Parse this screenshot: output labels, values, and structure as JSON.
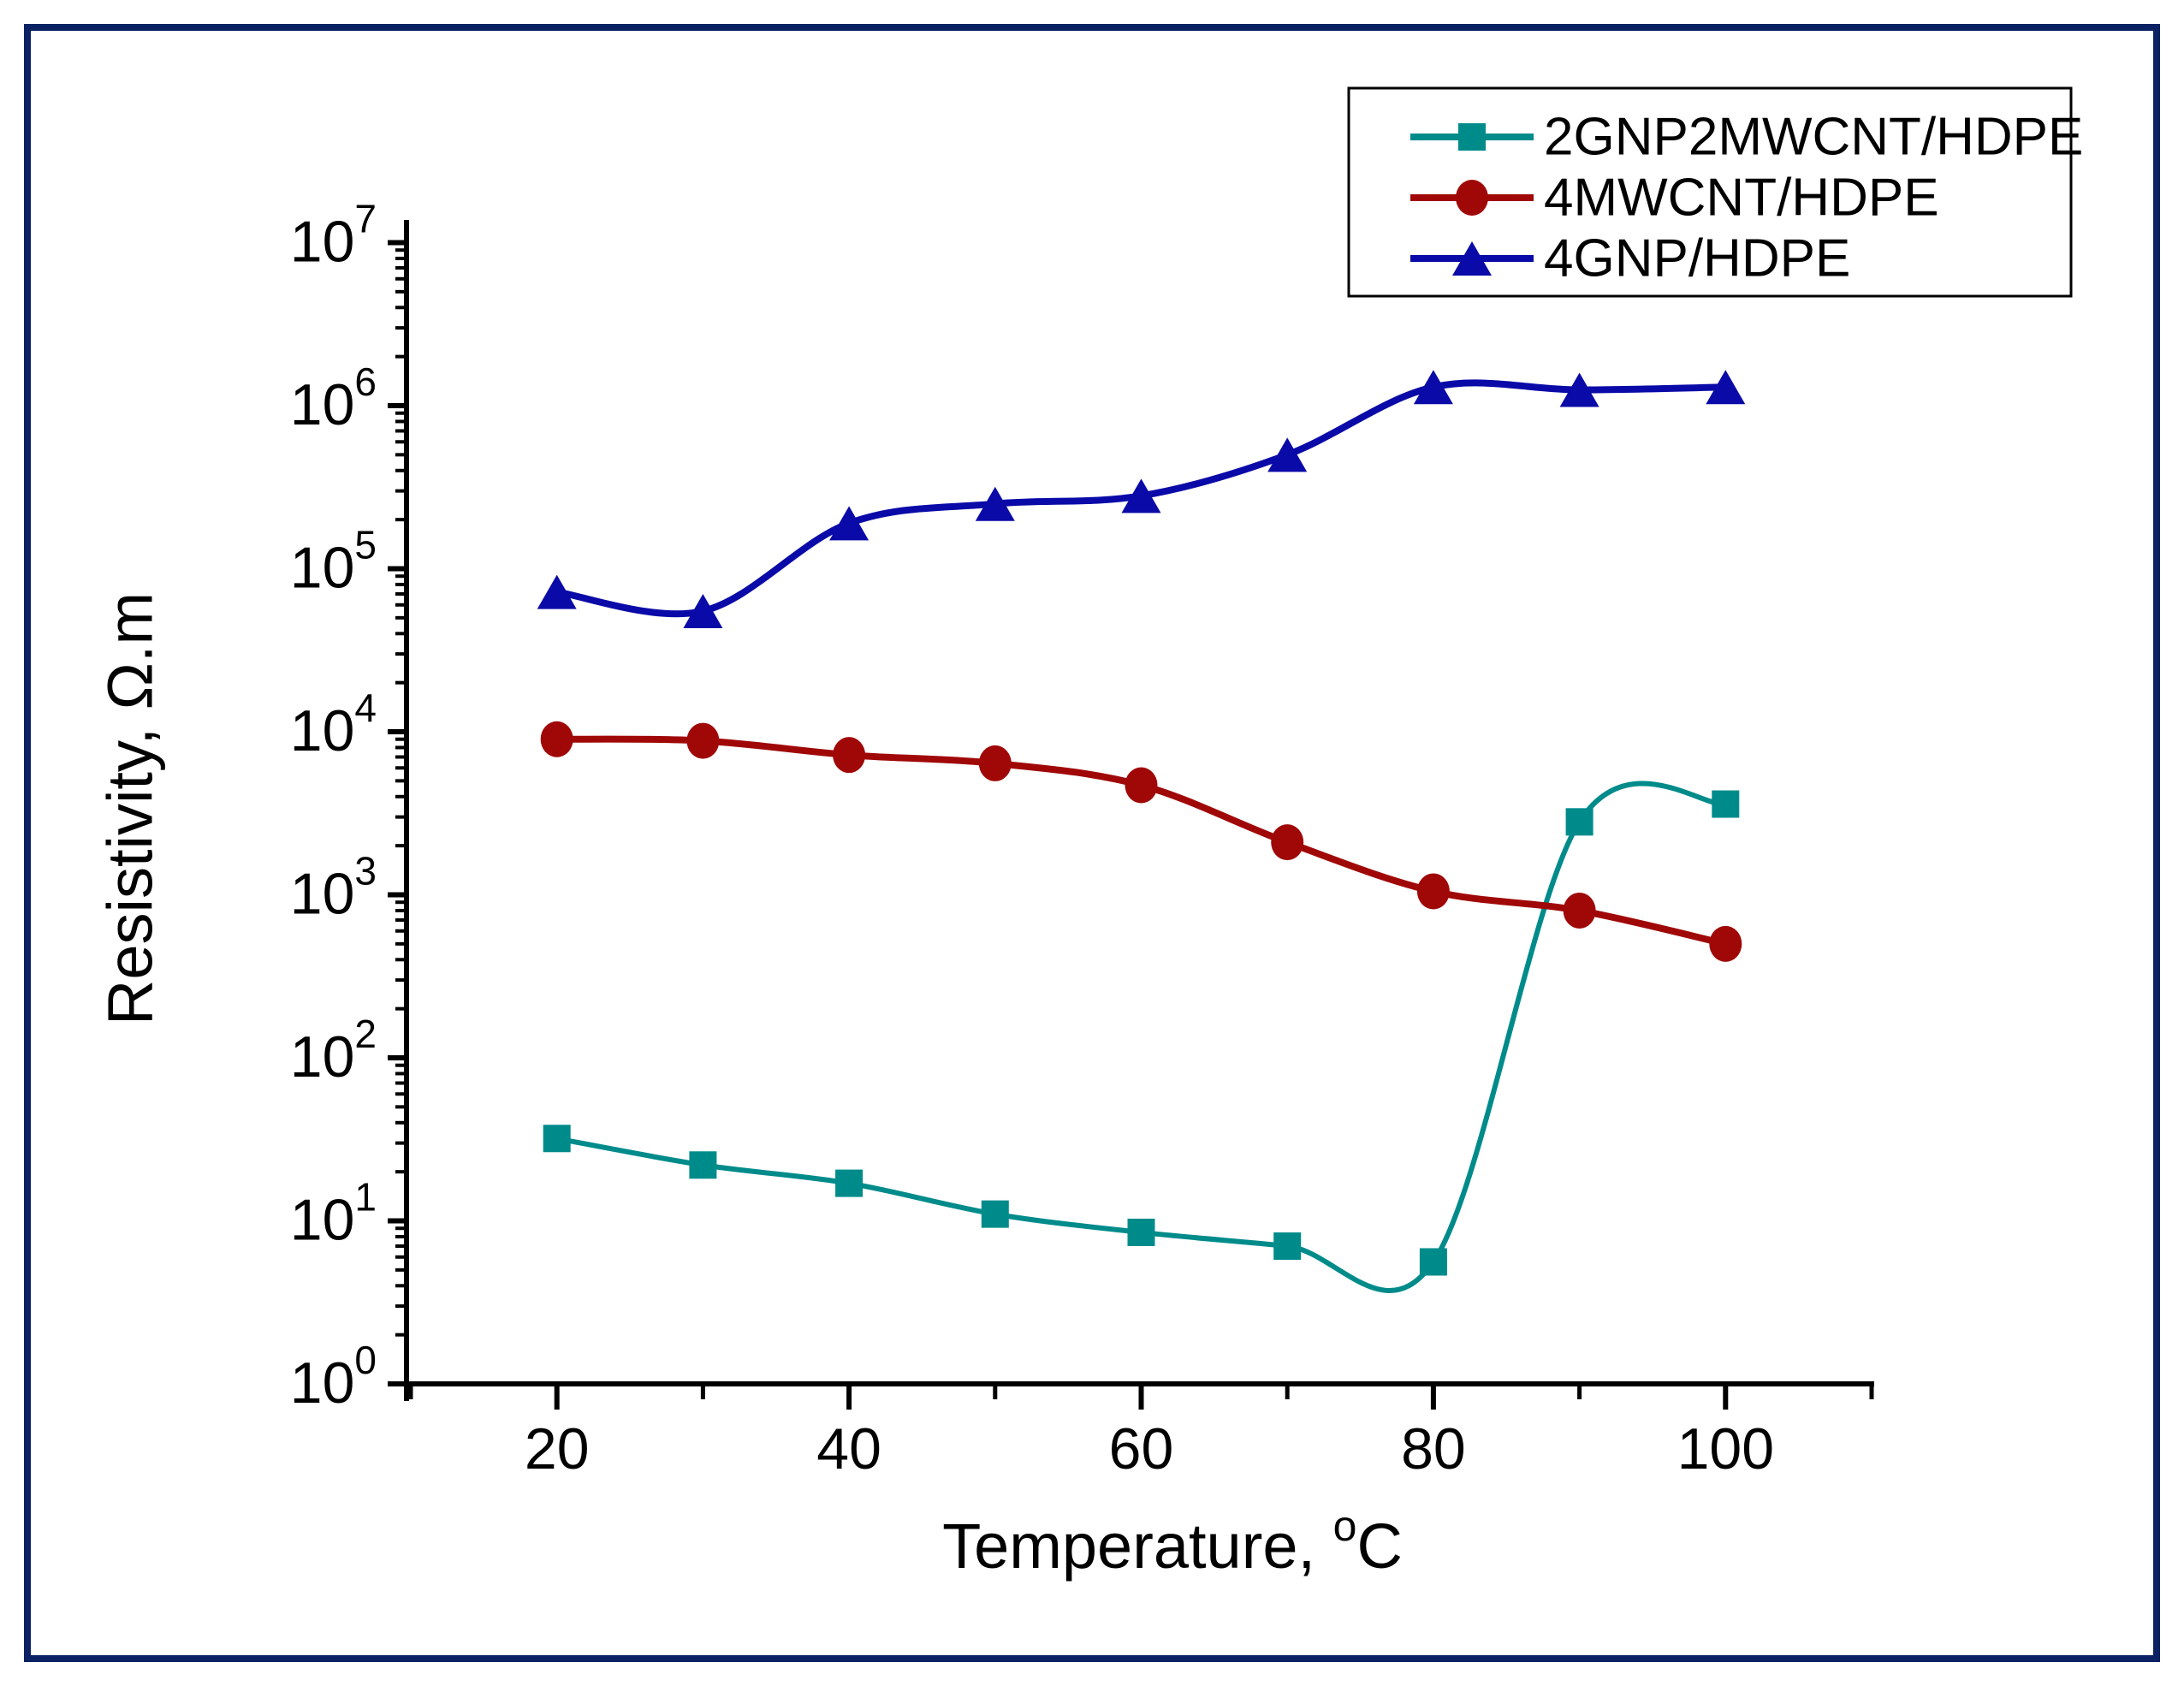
{
  "figure": {
    "border_color": "#0a2163",
    "background": "#ffffff"
  },
  "chart_data": {
    "type": "line",
    "title": "",
    "xlabel": "Temperature, °C",
    "xlabel_parts": {
      "prefix": "Temperature, ",
      "sup": "o",
      "suffix": "C"
    },
    "ylabel": "Resistivity, Ω.m",
    "x": [
      20,
      30,
      40,
      50,
      60,
      70,
      80,
      90,
      100
    ],
    "x_axis": {
      "min": 10,
      "max": 110,
      "major_ticks": [
        20,
        40,
        60,
        80,
        100
      ],
      "tick_labels": [
        "20",
        "40",
        "60",
        "80",
        "100"
      ],
      "minor_ticks": [
        10,
        30,
        50,
        70,
        90,
        110
      ]
    },
    "y_axis": {
      "scale": "log",
      "label_base": "10",
      "exponents": [
        0,
        1,
        2,
        3,
        4,
        5,
        6,
        7
      ],
      "min": 1,
      "max": 10000000
    },
    "grid": false,
    "legend_position": "top-right",
    "series": [
      {
        "name": "2GNP2MWCNT/HDPE",
        "color": "#008b8b",
        "marker": "square",
        "values": [
          32,
          22,
          17,
          11,
          8.5,
          7,
          5.6,
          2800,
          3600
        ]
      },
      {
        "name": "4MWCNT/HDPE",
        "color": "#a00808",
        "marker": "circle",
        "values": [
          9000,
          8800,
          7200,
          6400,
          4700,
          2100,
          1050,
          800,
          500
        ]
      },
      {
        "name": "4GNP/HDPE",
        "color": "#0a0aa8",
        "marker": "triangle",
        "values": [
          72000,
          55000,
          190000,
          250000,
          280000,
          500000,
          1300000,
          1250000,
          1300000
        ]
      }
    ]
  }
}
